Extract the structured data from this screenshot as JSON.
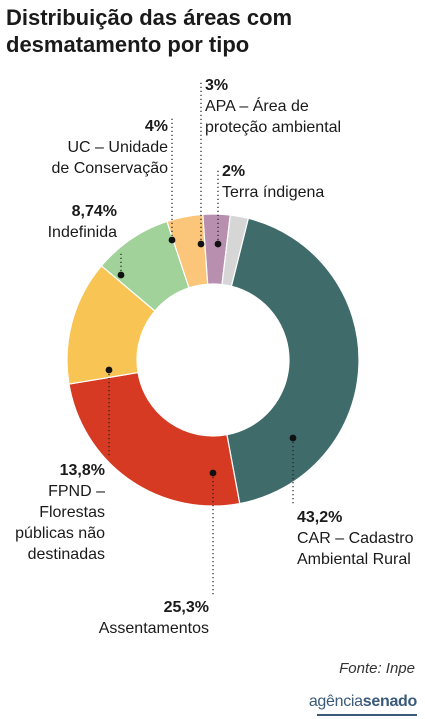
{
  "header": {
    "title_line1": "Distribuição das áreas com",
    "title_line2": "desmatamento por tipo"
  },
  "chart_data": {
    "type": "pie",
    "style": "donut",
    "title": "Distribuição das áreas com desmatamento por tipo",
    "slices": [
      {
        "label_value": "43,2%",
        "label_lines": [
          "CAR – Cadastro",
          "Ambiental Rural"
        ],
        "value": 43.2,
        "color": "#3f6b6b"
      },
      {
        "label_value": "25,3%",
        "label_lines": [
          "Assentamentos"
        ],
        "value": 25.3,
        "color": "#d63a22"
      },
      {
        "label_value": "13,8%",
        "label_lines": [
          "FPND –",
          "Florestas",
          "públicas não",
          "destinadas"
        ],
        "value": 13.8,
        "color": "#f8c453"
      },
      {
        "label_value": "8,74%",
        "label_lines": [
          "Indefinida"
        ],
        "value": 8.74,
        "color": "#a0d29a"
      },
      {
        "label_value": "4%",
        "label_lines": [
          "UC – Unidade",
          "de Conservação"
        ],
        "value": 4.0,
        "color": "#fbc57a"
      },
      {
        "label_value": "3%",
        "label_lines": [
          "APA – Área de",
          "proteção ambiental"
        ],
        "value": 3.0,
        "color": "#b98fb0"
      },
      {
        "label_value": "2%",
        "label_lines": [
          "Terra índigena"
        ],
        "value": 2.0,
        "color": "#d6d6d6"
      }
    ],
    "legend": "callout labels with dotted leader lines"
  },
  "footer": {
    "source": "Fonte: Inpe",
    "logo_part1": "agência",
    "logo_part2": "senado"
  }
}
